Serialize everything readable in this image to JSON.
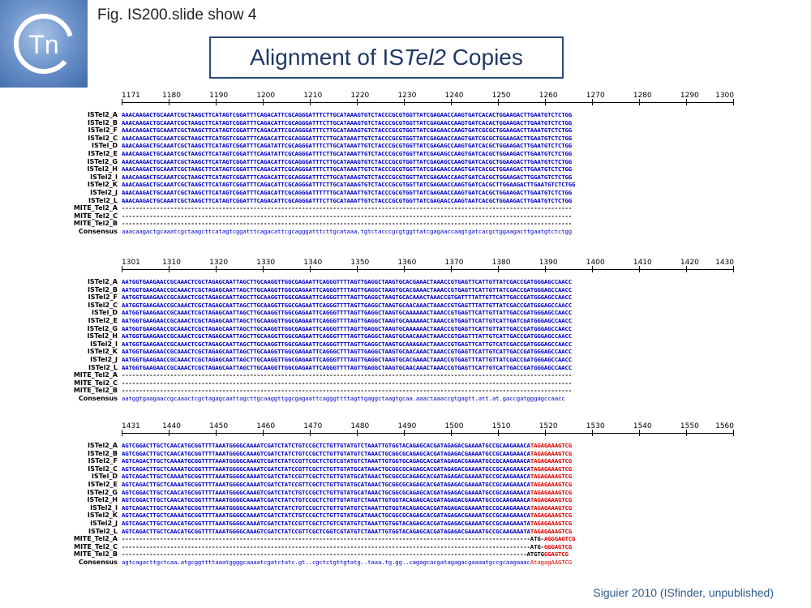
{
  "logo": {
    "text": "Tn",
    "icon": "tn-logo-icon"
  },
  "header": {
    "fig_label": "Fig. IS200.slide show 4",
    "title_pre": "Alignment of IS",
    "title_ital": "Tel2",
    "title_post": " Copies"
  },
  "credit": "Siguier 2010 (ISfinder, unpublished)",
  "colors": {
    "seq": "#0000cc",
    "terminal": "#e00000",
    "title": "#1f3864"
  },
  "blocks": [
    {
      "ruler": [
        "1171",
        "1180",
        "1190",
        "1200",
        "1210",
        "1220",
        "1230",
        "1240",
        "1250",
        "1260",
        "1270",
        "1280",
        "1290",
        "1300"
      ],
      "rows": [
        {
          "label": "ISTel2_A",
          "seq": "AAACAAGACTGCAAATCGCTAAGCTTCATAGTCGGATTTCAGACATTCGCAGGGATTTCTTGCATAAAGTGTCTACCCGCGTGGTTATCGAGAACCAAGTGATCACACTGGAAGACTTGAATGTCTCTGG"
        },
        {
          "label": "ISTel2_B",
          "seq": "AAACAAGACTGCAAATCGCTAAGCTTCATAGTCGGATTTCAGACATTCGCAGGGATTTCTTGCATAAAGTGTCTACCCGCGTGGTTATCGAGAACCAAGTGATCACACTGGAAGACTTGAATGTCTCTGG"
        },
        {
          "label": "ISTel2_F",
          "seq": "AAACAAGACTGCAAATCGCTAAGCTTCATAGTCGGATTTCAGACATTCGCAGGGATTTCTTGCATAAAGTGTCTACCCGCGTGGTTATCGAGAACCAAGTGATCGCGCTGGAAGACTTAAATGTCTCTGG"
        },
        {
          "label": "ISTel2_C",
          "seq": "AAACAAGACTGCAAATCGCTAAGCTTCATGGTCGGATTTCAGACATTCGCAGGGATTTCTTGCATAAATTGTCTACCCGCGTGGTTATCGAGAACCAAGTGATCGCGCTGGAAGACTTGAATGTCTCTGG"
        },
        {
          "label": "ISTel_D",
          "seq": "AAACAAGACTGCAAATCGCTAAGCTTCATAGTCGGATTTCAGATATTCGCAGGGATTTCTTGCATAAATTGTCTACCCGCGTGGTTATCGAGAGCCAAGTGATCACGCTGGAAGACTTGAATGTCTCTGG"
        },
        {
          "label": "ISTel2_E",
          "seq": "AAACAAGACTGCAAATCGCTAAGCTTCATAGTCGGATTTCAGATATTCGCAGGGATTTCTTGCATAAATTGTCTACCCGCGTGGTTATCGAGAGCCAAGTGATCACGCTGGAAGACTTGAATGTCTCTGG"
        },
        {
          "label": "ISTel2_G",
          "seq": "AAACAAGACTGCAAATCGCTAAGCTTCATAGTCGGATTTCAGACATTCGCAGGGATTTCTTGCATAAAGTGTCTACCCGCGTGGTTATCGAGAGCCAAGTGATCACGCTGGAAGACTTGAATGTCTCTGG"
        },
        {
          "label": "ISTel2_H",
          "seq": "AAACAAGACTGCAAATCGCTAAGCTTCATAGTCGGATTTCAGACATTCGCAGGGATTTCTTGCATAAATTGTCTACCCGCGTGGTTATCGAGAACCAAGTGATCACGCTGGAAGACTTGAATGTCTCTGG"
        },
        {
          "label": "ISTel2_I",
          "seq": "AAACAAGACTGCAAATCGCTAAGCTTCATAGTCGGATTTCAGACATTCGCAGGGATTTCTTGCATAAAGTGTCTACCCGCGTGGTTATCGAGAACCAAGTGATCACGCTGGAAGACTTGGATGTCTCTGG"
        },
        {
          "label": "ISTel2_K",
          "seq": "AAACAAGACTGCAAATCGCTAAGCTTCATAGTCGGATTTCAGACATTCGCAGGGATTTCTTGCATAAAGTGTCTACCCGCGTGGTTATCGAGAACCAAGTGATCACGCTTGGAAGACTTGAATGTCTCTGG"
        },
        {
          "label": "ISTel2_J",
          "seq": "AAACAAGACTGCAAATCGCTAAGCTTCATAGTCGGATTTCAGACATTCGCAGGGATTTTTTGCATAAATTGTCTACCCGCGTGGTTATCGAGAACCAAGTGATCACGCTGGAAGACTTGAATGTCTCTGG"
        },
        {
          "label": "ISTel2_L",
          "seq": "AAACAAGACTGCAAATCGCTAAGCTTCATAGTCGGATTTCAGACATTCGCAGGGATTTCTTGCATAAATTGTCTACCCGCGTGGTTATCGAGAACCAAGTAATCACGCTGGAAGACTTGAATGTCTCTGG"
        },
        {
          "label": "MITE_Tel2_A",
          "seq": "----------------------------------------------------------------------------------------------------------------------------------",
          "dash": true
        },
        {
          "label": "MITE_Tel2_C",
          "seq": "----------------------------------------------------------------------------------------------------------------------------------",
          "dash": true
        },
        {
          "label": "MITE_Tel2_B",
          "seq": "----------------------------------------------------------------------------------------------------------------------------------",
          "dash": true
        },
        {
          "label": "Consensus",
          "seq": "aaacaagactgcaaatcgctaagcttcatagtcggatttcagacattcgcagggatttcttgcataaa.tgtctacccgcgtggttatcgagaaccaagtgatcacgctggaagacttgaatgtctctgg",
          "cons": true
        }
      ]
    },
    {
      "ruler": [
        "1301",
        "1310",
        "1320",
        "1330",
        "1340",
        "1350",
        "1360",
        "1370",
        "1380",
        "1390",
        "1400",
        "1410",
        "1420",
        "1430"
      ],
      "rows": [
        {
          "label": "ISTel2_A",
          "seq": "AATGGTGAAGAACCGCAAACTCGCTAGAGCAATTAGCTTGCAAGGTTGGCGAGAATTCAGGGTTTTAGTTGAGGCTAAGTGCACGAAACTAAACCGTGAGTTCATTGTTATCGACCGATGGGAGCCAACC"
        },
        {
          "label": "ISTel2_B",
          "seq": "AATGGTGAAGAACCGCAAACTCGCTAGAGCAATTAGCTTGCAAGGTTGGCGAGAATTCAGGGTTTTAGTTGAGGCTAAGTGCACGAAACTAAACCGTGAGTTCATTGTTATCGACCGATGGGAGCCAACC"
        },
        {
          "label": "ISTel2_F",
          "seq": "AATGGTGAAGAACCGCAAACTCGCTAGAGCAATTAGCTTGCAAGGTTGGCGAGAATTCAGGGTTTTAGTTGAGGCTAAGTGCACAAACTAAACCGTGATTTTATTGTTCATTGACCGATGGGAGCCAACC"
        },
        {
          "label": "ISTel2_C",
          "seq": "AATGGTGAAGAACCGCAAACTCGCTAGAGCAATTAGCTTGCAAGGTTGGCGAGAATTCAGGGTTTTAGTTGAGGCTAAGTGCAACAAACTAAACCGTGAGTTTATTGTTATCGACCGATGGGAGCCAACC"
        },
        {
          "label": "ISTel_D",
          "seq": "AATGGTGAAGAACCGCAAACTCGCTAGAGCAATTAGCTTGCAAGGTTGGCGAGAATTCAGGGTTTTAGTTGAGGCTAAGTGCAAAAAACTAAACCGTGAGTTCATTGTTATTGACCGATGGGAGCCAACC"
        },
        {
          "label": "ISTel2_E",
          "seq": "AATGGTGAAGAACCGCAAACTCGCTAGAGCAATTAGCTTGCAAGGTTGGCGAGAATTCAGGGTTTTAGTTGAGGCTAAGTGCAAAAAACTAAACCGTGAGTTCATTGTCATTGATCGATGGGAGCCAACC"
        },
        {
          "label": "ISTel2_G",
          "seq": "AATGGTGAAGAACCGCAAACTCGCTAGAGCAATTAGCTTGCAAGGTTGGCGAGAATTCAGGGTTTTAGTTGAGGCTAAGTGCAAAAAACTAAACCGTGAGTTCATTGTTATTGACCGATGGGAGCCAACC"
        },
        {
          "label": "ISTel2_H",
          "seq": "AATGGTGAAGAACCGCAAACTCGCTAGAGCAATTAGCTTGCAAGGTTGGCGAGAATTCAGGGTTTTAGTTGAGGCTAAGTGCAACAAACTAAACCGTGAGTTTATTGTCATTGACCGATGGGAGCCAACC"
        },
        {
          "label": "ISTel2_I",
          "seq": "AATGGTGAAGAACCGCAAACTCGCTAGAGCAATTAGCTTGCAAGGTTGGCGAGAATTCAGGGTTTTAGTTGAGGCTAAGTGCAAAGAACTAAACCGTGAGTTCATTGTCATCGACCGATGGGAGCCAACC"
        },
        {
          "label": "ISTel2_K",
          "seq": "AATGGTGAAGAACCGCAAACTCGCTAGAGCAATTAGCTTGCAAGGTTGGCGAGAATTCAGGGCTTTAGTTGAGGCTAAGTGCAACAAACTAAACCGTGAGTTCATTGTCATTGACCGATGGGAGCCAACC"
        },
        {
          "label": "ISTel2_J",
          "seq": "AATGGTGAAGAACCGCAAACTCGCTAGAGCAATTAGCTTGCAAGGTTGGCGAGAATTCAGGGTTTTAGTTGAGGCTAAGTGCACGAAACTAAACCGTGAGTTTATTGTTATCGACCGATGGGAGCCAACC"
        },
        {
          "label": "ISTel2_L",
          "seq": "AATGGTGAAGAACCGCAAACTCGCTAGAGCAATTAGCTTGCAAGGTTGGCGAGAATTCAGGGTTTTAGTTGAGGCTAAGTGCAACAAACTAAACCGTGAGTTCATTGTCATTGACCGATGGGAGCCAACC"
        },
        {
          "label": "MITE_Tel2_A",
          "seq": "----------------------------------------------------------------------------------------------------------------------------------",
          "dash": true
        },
        {
          "label": "MITE_Tel2_C",
          "seq": "----------------------------------------------------------------------------------------------------------------------------------",
          "dash": true
        },
        {
          "label": "MITE_Tel2_B",
          "seq": "----------------------------------------------------------------------------------------------------------------------------------",
          "dash": true
        },
        {
          "label": "Consensus",
          "seq": "aatggtgaagaaccgcaaactcgctagagcaattagcttgcaaggttggcgagaattcagggttttagttgaggctaagtgcaa.aaactaaaccgtgagtt.att.at.gaccgatgggagccaacc",
          "cons": true
        }
      ]
    },
    {
      "ruler": [
        "1431",
        "1440",
        "1450",
        "1460",
        "1470",
        "1480",
        "1490",
        "1500",
        "1510",
        "1520",
        "1530",
        "1540",
        "1550",
        "1560"
      ],
      "rows": [
        {
          "label": "ISTel2_A",
          "seq": "AGTCGGACTTGCTCAACATGCGGTTTTAAATGGGGCAAAATCGATCTATCTGTCCGCTCTGTTGTATGTCTAAATTGTGGTACAGAGCACGATAGAGACGAAAATGCCGCAAGAAACA",
          "term": "TAGAGAAAGTCG"
        },
        {
          "label": "ISTel2_B",
          "seq": "AGTCGGACTTGCTCAACATGCGGTTTTAAATGGGGCAAAGTCGATCTATCTGTCCGCTCTGTTGTATGTCTAAACTGCGGCGCAGAGCACGATAGAGACGAAAATGCCGCAAGAAACA",
          "term": "TAGAGAAAGTCG"
        },
        {
          "label": "ISTel2_F",
          "seq": "AGTCAGACTTGCTCAAAATGCGGTTTTAAATGGGGCAAAGTCGATCTATCCGTTCGCTCTGTCGTATGTCTAAATTGTGGTGCAGAGCACGATAGAGACGAAAATGCCGCAAGAAACA",
          "term": "TAGAGAAAGTCG"
        },
        {
          "label": "ISTel2_C",
          "seq": "AGTCAGACTTGCTCAAAATGCGGTTTTAAATGGGGCAAAATCGATCTATCCGTTCGCTCTGTTGTATGCATAAACTGCGGCGCAGAGCACGATAGAGACGAAAATGCCGCAAGAAACA",
          "term": "TAGAGAAAGTCG"
        },
        {
          "label": "ISTel_D",
          "seq": "AGTCAGACTTGCTCAAAATGCGGTTTTAAATGGGGCAAAATCGATCTATCCGTTCGCTCTGTTGTATGCATAAACTGCGGCGCAGAGCACGATAGAGACGAAAATGCCGCAAGAAACA",
          "term": "TAGAGAAAGTCG"
        },
        {
          "label": "ISTel2_E",
          "seq": "AGTCAGACTTGCTCAAAATGCGGTTTTAAATGGGGCAAAATCGATCTATCCGTTCGCTCTGTTGTATGCATAAACTGCGGCGCAGAGCACGATAGAGACGAAAATGCCGCAAGAAACA",
          "term": "TAGAGAAAGTCG"
        },
        {
          "label": "ISTel2_G",
          "seq": "AGTCGGACTTGCTCAACATGCGGTTTTAAATGGGGCAAAGTCGATCTATCTGTCCGCTCTGTTGTATGCATAAACTGCGGCGCAGAGCACGATAGAGACGAAAATGCCGCAAGAAACA",
          "term": "TAGAGAAAGTCG"
        },
        {
          "label": "ISTel2_H",
          "seq": "AGTCGGACTTGCTCAACATGCGGTTTTAAATGGGGCAAAATCGATCTATCTGTCCGCTCTGTTGTATGTCTAAATTGTGGTACAGAGCACGATAGAGACGAAAATGCCGCAAGAAACA",
          "term": "TAGAGAAAGTCG"
        },
        {
          "label": "ISTel2_I",
          "seq": "AGTCAGACTTGCTCAAAATGCGGTTTTAAATGGGGCAAAATCGATCTATCTGTCCGCTCTGTTGTATGTCTAAATTGTGGTACAGAGCACGATAGAGACGAAAATGCCGCAAGAAACA",
          "term": "TAGAGAAAGTCG"
        },
        {
          "label": "ISTel2_K",
          "seq": "AGTCAGACTTGCTCAAAATGCGGTTTTAAATGGGGCAAAATCGATCTATCTGTCCGCTCTGTTGTATGCATAAACTGCGGCGCAGAGCACGATAGAGACGAAAATGCCGCAAGAAACA",
          "term": "TAGAGAAAGTCG"
        },
        {
          "label": "ISTel2_J",
          "seq": "AGTCAGACTTGCTCAACATGCGGTTTTAAATGGGGCAAAATCGATCTATCCGTTCGCTCTGTCGTATGTCTAAATTGTGGTACAGAGCACGATAGAGACGAAAATGCCGCAAGAAATA",
          "term": "TAGAGAAAGTCG"
        },
        {
          "label": "ISTel2_L",
          "seq": "AGTCAGACTTGCTCAACATGCGGTTTTAAATGGGGCAAAGTCGATCTATCCGTTCGCTCGGTCGTATGTCTAAATTGTGGTACAGAGCACGATAGAGACGAAAATGCCGCAAGAAATA",
          "term": "TAGAGAAAGTCG"
        },
        {
          "label": "MITE_Tel2_A",
          "seq": "----------------------------------------------------------------------------------------------------------------------ATG-",
          "term": "AGGGAGTCG",
          "dash": true
        },
        {
          "label": "MITE_Tel2_C",
          "seq": "----------------------------------------------------------------------------------------------------------------------ATG-",
          "term": "GGGAGTCG",
          "dash": true
        },
        {
          "label": "MITE_Tel2_B",
          "seq": "---------------------------------------------------------------------------------------------------------------------ATGTG",
          "term": "GGAGTCG",
          "dash": true
        },
        {
          "label": "Consensus",
          "seq": "agtcagacttgctcaa.atgcggttttaaatggggcaaaatcgatctatc.gt..cgctctgttgtatg..taaa.tg.gg..cagagcacgatagagacgaaaatgccgcaagaaac",
          "term": "AtagagAAGTCG",
          "cons": true
        }
      ]
    }
  ]
}
